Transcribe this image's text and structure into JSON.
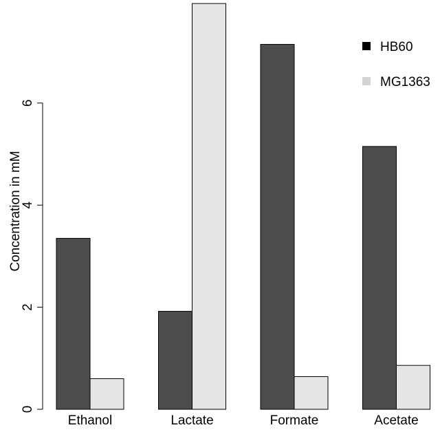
{
  "chart_data": {
    "type": "bar",
    "categories": [
      "Ethanol",
      "Lactate",
      "Formate",
      "Acetate"
    ],
    "series": [
      {
        "name": "HB60",
        "values": [
          3.35,
          1.92,
          7.15,
          5.15
        ],
        "color": "#4d4d4d"
      },
      {
        "name": "MG1363",
        "values": [
          0.6,
          7.95,
          0.64,
          0.86
        ],
        "color": "#e6e6e6"
      }
    ],
    "title": "",
    "xlabel": "",
    "ylabel": "Concentration in mM",
    "ylim": [
      0,
      8
    ],
    "yticks": [
      0,
      2,
      4,
      6
    ],
    "grid": false,
    "legend_position": "top-right"
  }
}
